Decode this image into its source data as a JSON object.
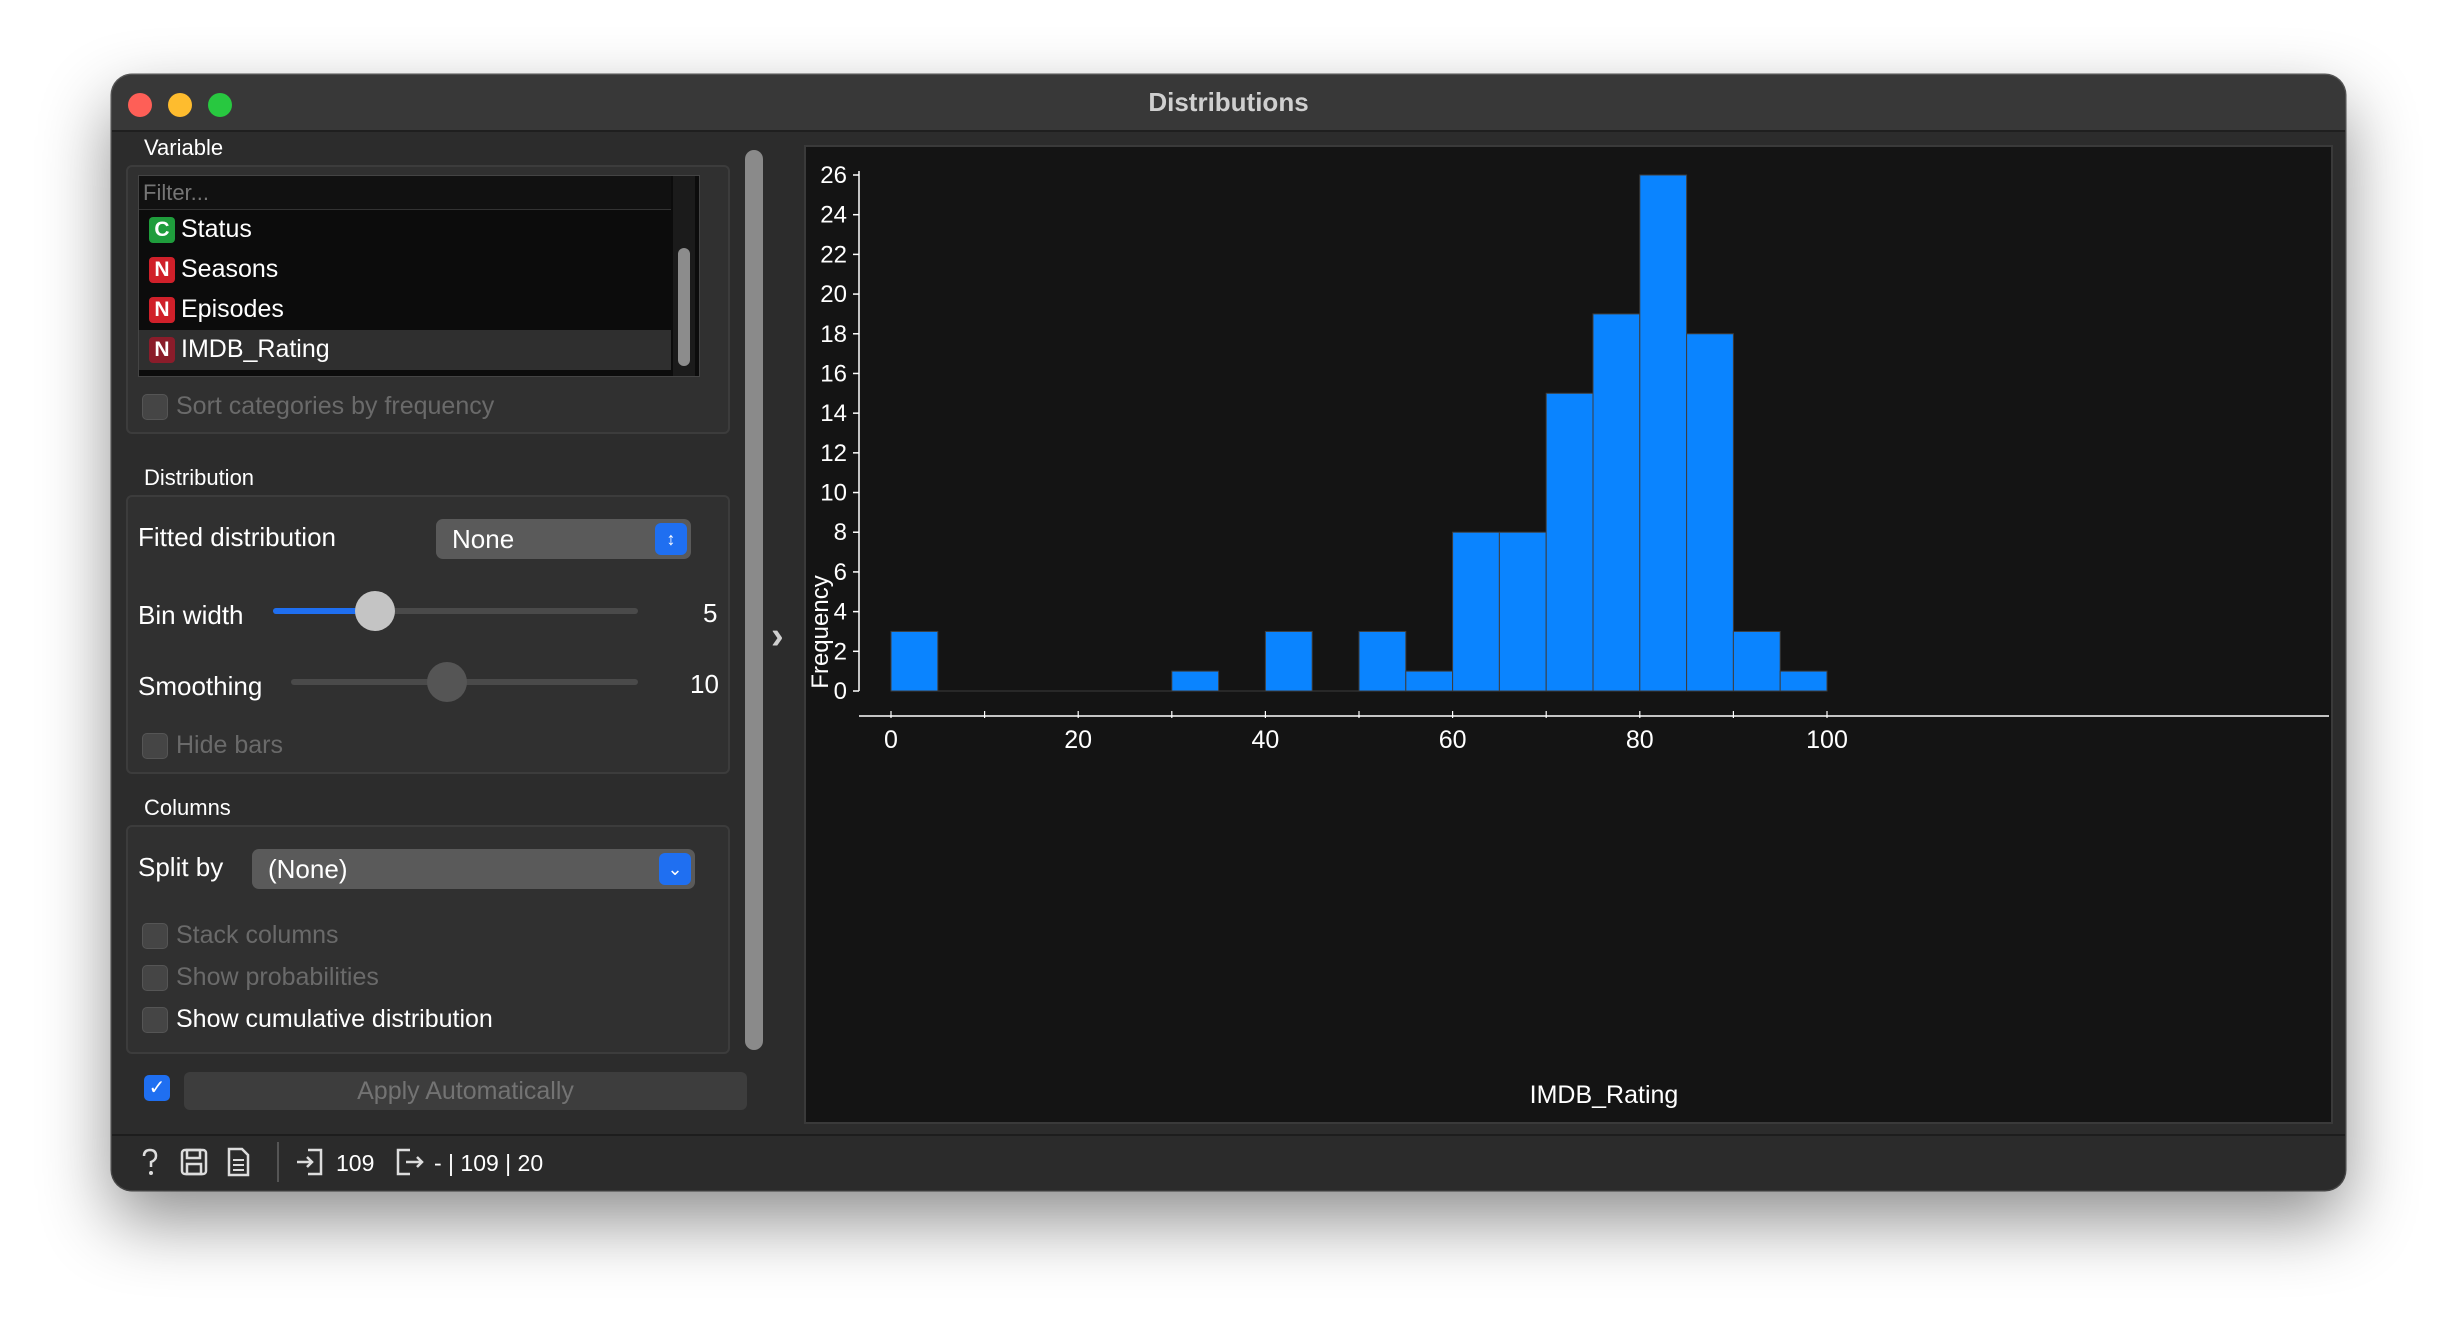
{
  "window": {
    "title": "Distributions"
  },
  "variable": {
    "section_title": "Variable",
    "filter_placeholder": "Filter...",
    "items": [
      {
        "badge": "C",
        "label": "Status",
        "badge_color": "#1f9d3c"
      },
      {
        "badge": "N",
        "label": "Seasons",
        "badge_color": "#d0202a"
      },
      {
        "badge": "N",
        "label": "Episodes",
        "badge_color": "#d0202a"
      },
      {
        "badge": "N",
        "label": "IMDB_Rating",
        "badge_color": "#8a1c2a",
        "selected": true
      }
    ],
    "sort_by_frequency_label": "Sort categories by frequency"
  },
  "distribution": {
    "section_title": "Distribution",
    "fitted_label": "Fitted distribution",
    "fitted_value": "None",
    "bin_width_label": "Bin width",
    "bin_width_value": "5",
    "bin_width_level": 0.28,
    "smoothing_label": "Smoothing",
    "smoothing_value": "10",
    "smoothing_level": 0.45,
    "hide_bars_label": "Hide bars"
  },
  "columns": {
    "section_title": "Columns",
    "split_by_label": "Split by",
    "split_by_value": "(None)",
    "stack_label": "Stack columns",
    "probabilities_label": "Show probabilities",
    "cumulative_label": "Show cumulative distribution"
  },
  "apply": {
    "label": "Apply Automatically",
    "checked": true
  },
  "statusbar": {
    "input_count": "109",
    "output_summary": "- | 109 | 20"
  },
  "colors": {
    "accent": "#1f6ff1",
    "bar": "#0a84ff"
  },
  "chart_data": {
    "type": "bar",
    "xlabel": "IMDB_Rating",
    "ylabel": "Frequency",
    "bin_width": 5,
    "bins": [
      {
        "x0": 0,
        "x1": 5,
        "count": 3
      },
      {
        "x0": 5,
        "x1": 10,
        "count": 0
      },
      {
        "x0": 10,
        "x1": 15,
        "count": 0
      },
      {
        "x0": 15,
        "x1": 20,
        "count": 0
      },
      {
        "x0": 20,
        "x1": 25,
        "count": 0
      },
      {
        "x0": 25,
        "x1": 30,
        "count": 0
      },
      {
        "x0": 30,
        "x1": 35,
        "count": 1
      },
      {
        "x0": 35,
        "x1": 40,
        "count": 0
      },
      {
        "x0": 40,
        "x1": 45,
        "count": 3
      },
      {
        "x0": 45,
        "x1": 50,
        "count": 0
      },
      {
        "x0": 50,
        "x1": 55,
        "count": 3
      },
      {
        "x0": 55,
        "x1": 60,
        "count": 1
      },
      {
        "x0": 60,
        "x1": 65,
        "count": 8
      },
      {
        "x0": 65,
        "x1": 70,
        "count": 8
      },
      {
        "x0": 70,
        "x1": 75,
        "count": 15
      },
      {
        "x0": 75,
        "x1": 80,
        "count": 19
      },
      {
        "x0": 80,
        "x1": 85,
        "count": 26
      },
      {
        "x0": 85,
        "x1": 90,
        "count": 18
      },
      {
        "x0": 90,
        "x1": 95,
        "count": 3
      },
      {
        "x0": 95,
        "x1": 100,
        "count": 1
      }
    ],
    "xlim": [
      0,
      100
    ],
    "ylim": [
      0,
      26
    ],
    "xticks": [
      0,
      20,
      40,
      60,
      80,
      100
    ],
    "yticks": [
      0,
      2,
      4,
      6,
      8,
      10,
      12,
      14,
      16,
      18,
      20,
      22,
      24,
      26
    ],
    "grid": false
  }
}
